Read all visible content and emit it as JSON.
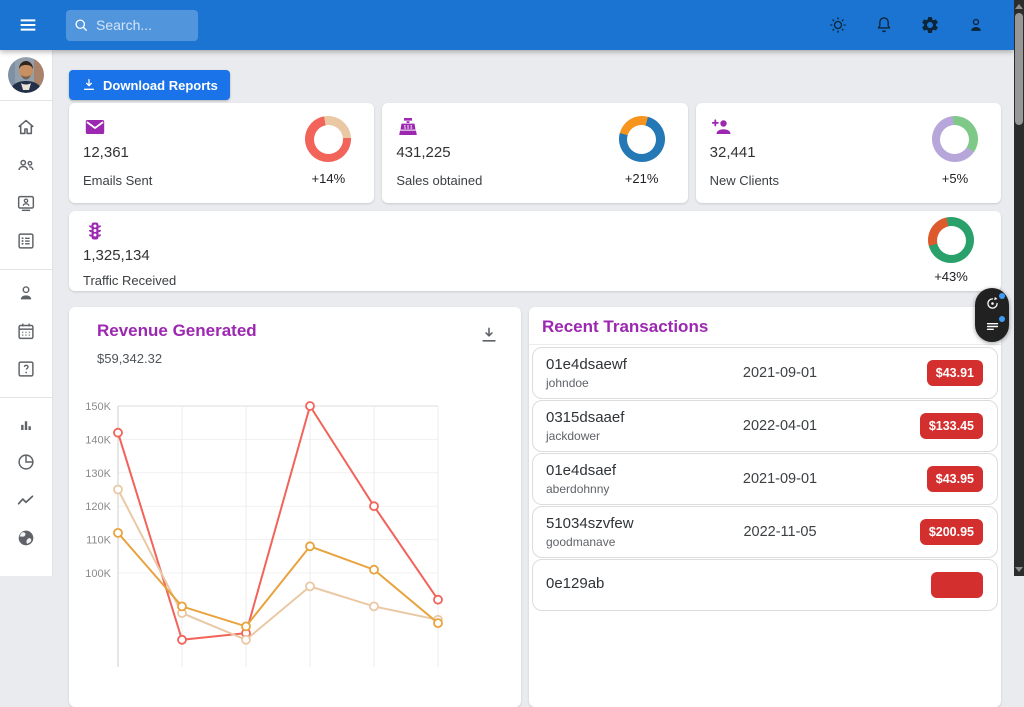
{
  "navbar": {
    "search_placeholder": "Search...",
    "icons": [
      "brightness-icon",
      "bell-icon",
      "gear-icon",
      "person-icon"
    ]
  },
  "sidebar": {
    "sections": [
      [
        "home-icon",
        "people-icon",
        "contact-card-icon",
        "list-icon"
      ],
      [
        "person-icon",
        "calendar-icon",
        "help-icon"
      ],
      [
        "bar-chart-icon",
        "pie-chart-icon",
        "line-chart-icon",
        "globe-icon"
      ]
    ]
  },
  "toolbar": {
    "download_reports_label": "Download Reports"
  },
  "stat_cards": [
    {
      "icon": "email-icon",
      "value": "12,361",
      "label": "Emails Sent",
      "percent": "+14%",
      "donut": {
        "main": "#f2635a",
        "accent": "#eac8a4",
        "start_deg": 350,
        "accent_pct": 27
      }
    },
    {
      "icon": "cash-register-icon",
      "value": "431,225",
      "label": "Sales obtained",
      "percent": "+21%",
      "donut": {
        "main": "#2478b5",
        "accent": "#f7941d",
        "start_deg": 285,
        "accent_pct": 25
      }
    },
    {
      "icon": "person-add-icon",
      "value": "32,441",
      "label": "New Clients",
      "percent": "+5%",
      "donut": {
        "main": "#b7a6d9",
        "accent": "#7ec888",
        "start_deg": 355,
        "accent_pct": 36
      }
    },
    {
      "icon": "traffic-light-icon",
      "value": "1,325,134",
      "label": "Traffic Received",
      "percent": "+43%",
      "donut": {
        "main": "#2aa06a",
        "accent": "#dc5a2c",
        "start_deg": 255,
        "accent_pct": 26
      },
      "wide": true
    }
  ],
  "revenue": {
    "title": "Revenue Generated",
    "amount": "$59,342.32",
    "chart_data": {
      "type": "line",
      "x": [
        0,
        1,
        2,
        3,
        4,
        5
      ],
      "series": [
        {
          "name": "revenue-red",
          "color": "#f2635a",
          "values_k": [
            142,
            80,
            82,
            150,
            120,
            92
          ]
        },
        {
          "name": "revenue-tan",
          "color": "#eac8a4",
          "values_k": [
            125,
            88,
            80,
            96,
            90,
            86
          ]
        },
        {
          "name": "revenue-orange",
          "color": "#e8a33d",
          "values_k": [
            112,
            90,
            84,
            108,
            101,
            85
          ]
        }
      ],
      "ylabels": [
        "150K",
        "140K",
        "130K",
        "120K",
        "110K",
        "100K"
      ],
      "ylim_k": [
        100,
        150
      ],
      "grid": true,
      "legend": "none"
    }
  },
  "transactions": {
    "title": "Recent Transactions",
    "rows": [
      {
        "id": "01e4dsaewf",
        "user": "johndoe",
        "date": "2021-09-01",
        "amount": "$43.91"
      },
      {
        "id": "0315dsaaef",
        "user": "jackdower",
        "date": "2022-04-01",
        "amount": "$133.45"
      },
      {
        "id": "01e4dsaef",
        "user": "aberdohnny",
        "date": "2021-09-01",
        "amount": "$43.95"
      },
      {
        "id": "51034szvfew",
        "user": "goodmanave",
        "date": "2022-11-05",
        "amount": "$200.95"
      },
      {
        "id": "0e129ab",
        "user": "",
        "date": "",
        "amount": ""
      }
    ]
  },
  "floating_widget": {
    "icons": [
      "timer-icon",
      "lines-icon"
    ]
  },
  "theme": {
    "navbar_blue": "#1b74d2",
    "accent_purple": "#9c27b0",
    "button_blue": "#1a73e8",
    "badge_red": "#d32f2f"
  }
}
